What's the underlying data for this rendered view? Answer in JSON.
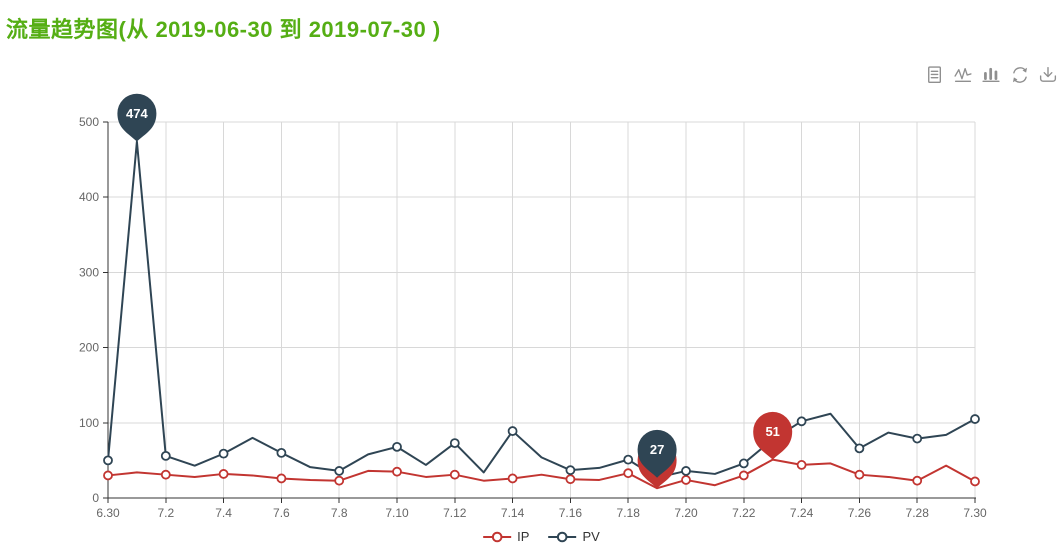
{
  "page": {
    "background": "#ffffff"
  },
  "colors": {
    "title": "#55ae14",
    "axis_line": "#333333",
    "axis_label": "#666666",
    "grid_line": "#d8d8d8",
    "toolbar_icon": "#8f8f8f",
    "ip_series": "#c23531",
    "pv_series": "#2f4554",
    "pin_text": "#ffffff"
  },
  "toolbar": {
    "icons": [
      "data-view",
      "switch-to-line-chart",
      "switch-to-bar-chart",
      "restore",
      "save-as-image"
    ]
  },
  "chart_data": {
    "type": "line",
    "title": "流量趋势图(从 2019-06-30 到 2019-07-30 )",
    "categories": [
      "6.30",
      "7.1",
      "7.2",
      "7.3",
      "7.4",
      "7.5",
      "7.6",
      "7.7",
      "7.8",
      "7.9",
      "7.10",
      "7.11",
      "7.12",
      "7.13",
      "7.14",
      "7.15",
      "7.16",
      "7.17",
      "7.18",
      "7.19",
      "7.20",
      "7.21",
      "7.22",
      "7.23",
      "7.24",
      "7.25",
      "7.26",
      "7.27",
      "7.28",
      "7.29",
      "7.30"
    ],
    "label_interval": 2,
    "visible_x_labels": [
      "6.30",
      "7.2",
      "7.4",
      "7.6",
      "7.8",
      "7.10",
      "7.12",
      "7.14",
      "7.16",
      "7.18",
      "7.20",
      "7.22",
      "7.24",
      "7.26",
      "7.28",
      "7.30"
    ],
    "series": [
      {
        "name": "IP",
        "color": "#c23531",
        "values": [
          30,
          34,
          31,
          28,
          32,
          30,
          26,
          24,
          23,
          36,
          35,
          28,
          31,
          23,
          26,
          31,
          25,
          24,
          33,
          13,
          24,
          17,
          30,
          51,
          44,
          46,
          31,
          28,
          23,
          43,
          22
        ]
      },
      {
        "name": "PV",
        "color": "#2f4554",
        "values": [
          50,
          474,
          56,
          43,
          59,
          80,
          60,
          41,
          36,
          58,
          68,
          44,
          73,
          34,
          89,
          54,
          37,
          40,
          51,
          27,
          36,
          32,
          46,
          78,
          102,
          112,
          66,
          87,
          79,
          84,
          105
        ]
      }
    ],
    "marks": [
      {
        "series": "PV",
        "category": "7.1",
        "value": 474,
        "label": "474"
      },
      {
        "series": "IP",
        "category": "7.19",
        "value": 13,
        "label": ""
      },
      {
        "series": "PV",
        "category": "7.19",
        "value": 27,
        "label": "27"
      },
      {
        "series": "IP",
        "category": "7.23",
        "value": 51,
        "label": "51"
      }
    ],
    "xlabel": "",
    "ylabel": "",
    "ylim": [
      0,
      500
    ],
    "ytick_step": 100,
    "ytick_labels": [
      "0",
      "100",
      "200",
      "300",
      "400",
      "500"
    ],
    "grid": true,
    "legend": {
      "position": "bottom",
      "items": [
        "IP",
        "PV"
      ]
    }
  }
}
